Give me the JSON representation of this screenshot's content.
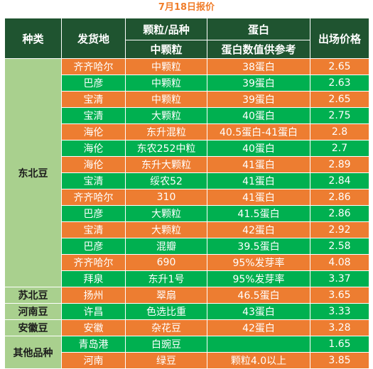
{
  "title": "7月18日报价",
  "headers": {
    "category": "种类",
    "origin": "发货地",
    "grain_variety": "颗粒/品种",
    "grain_sub": "中颗粒",
    "protein": "蛋白",
    "protein_sub": "蛋白数值供参考",
    "price": "出场价格"
  },
  "categories": {
    "dongbei": "东北豆",
    "subei": "苏北豆",
    "henan": "河南豆",
    "anhui": "安徽豆",
    "other": "其他品种"
  },
  "rows": [
    {
      "origin": "齐齐哈尔",
      "variety": "中颗粒",
      "protein": "38蛋白",
      "price": "2.65",
      "color": "#ed7d31"
    },
    {
      "origin": "巴彦",
      "variety": "中颗粒",
      "protein": "39蛋白",
      "price": "2.63",
      "color": "#00b050"
    },
    {
      "origin": "宝清",
      "variety": "中颗粒",
      "protein": "39蛋白",
      "price": "2.65",
      "color": "#ed7d31"
    },
    {
      "origin": "宝清",
      "variety": "大颗粒",
      "protein": "40蛋白",
      "price": "2.75",
      "color": "#00b050"
    },
    {
      "origin": "海伦",
      "variety": "东升混粒",
      "protein": "40.5蛋白-41蛋白",
      "price": "2.8",
      "color": "#ed7d31"
    },
    {
      "origin": "海伦",
      "variety": "东农252中粒",
      "protein": "40蛋白",
      "price": "2.7",
      "color": "#00b050"
    },
    {
      "origin": "海伦",
      "variety": "东升大颗粒",
      "protein": "41蛋白",
      "price": "2.89",
      "color": "#ed7d31"
    },
    {
      "origin": "宝清",
      "variety": "绥农52",
      "protein": "41蛋白",
      "price": "2.84",
      "color": "#00b050"
    },
    {
      "origin": "齐齐哈尔",
      "variety": "310",
      "protein": "41蛋白",
      "price": "2.86",
      "color": "#ed7d31"
    },
    {
      "origin": "巴彦",
      "variety": "大颗粒",
      "protein": "41.5蛋白",
      "price": "2.86",
      "color": "#00b050"
    },
    {
      "origin": "宝清",
      "variety": "大颗粒",
      "protein": "42蛋白",
      "price": "2.92",
      "color": "#ed7d31"
    },
    {
      "origin": "巴彦",
      "variety": "混瓣",
      "protein": "39.5蛋白",
      "price": "2.58",
      "color": "#00b050"
    },
    {
      "origin": "齐齐哈尔",
      "variety": "690",
      "protein": "95%发芽率",
      "price": "4.08",
      "color": "#ed7d31"
    },
    {
      "origin": "拜泉",
      "variety": "东升1号",
      "protein": "95%发芽率",
      "price": "3.37",
      "color": "#00b050"
    },
    {
      "origin": "扬州",
      "variety": "翠扇",
      "protein": "46.5蛋白",
      "price": "3.65",
      "color": "#ed7d31"
    },
    {
      "origin": "许昌",
      "variety": "色选比重",
      "protein": "43蛋白",
      "price": "3.33",
      "color": "#00b050"
    },
    {
      "origin": "安徽",
      "variety": "杂花豆",
      "protein": "42蛋白",
      "price": "3.28",
      "color": "#ed7d31"
    },
    {
      "origin": "青岛港",
      "variety": "白豌豆",
      "protein": "",
      "price": "1.65",
      "color": "#00b050"
    },
    {
      "origin": "河南",
      "variety": "绿豆",
      "protein": "颗粒4.0以上",
      "price": "3.85",
      "color": "#ed7d31"
    }
  ]
}
